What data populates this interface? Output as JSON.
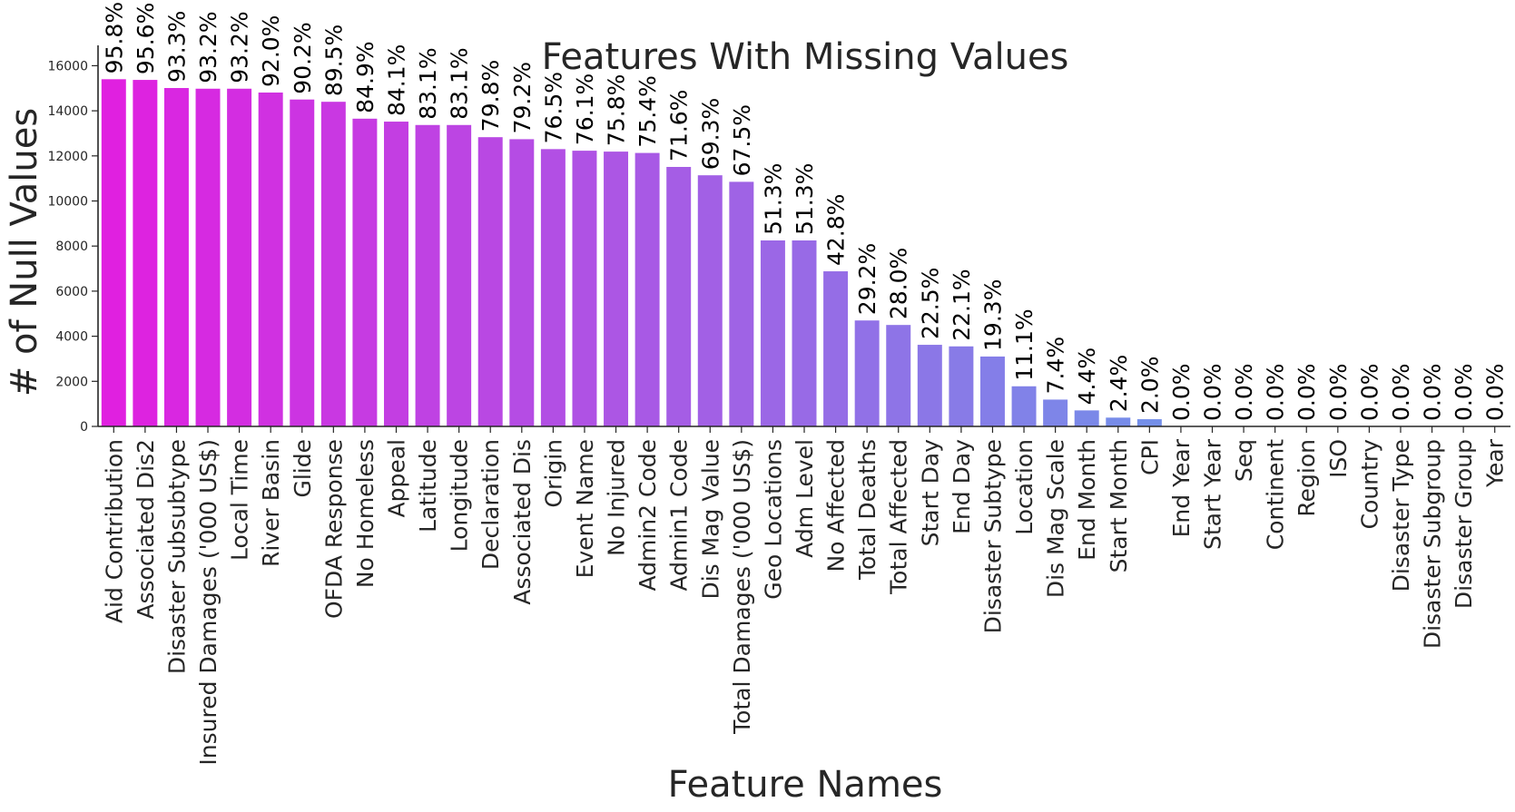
{
  "chart_data": {
    "type": "bar",
    "title": "Features With Missing Values",
    "xlabel": "Feature Names",
    "ylabel": "# of Null Values",
    "ylim": [
      0,
      16500
    ],
    "yticks": [
      0,
      2000,
      4000,
      6000,
      8000,
      10000,
      12000,
      14000,
      16000
    ],
    "grid": false,
    "legend": "none",
    "color_start": "#e020e0",
    "color_end": "#50b4ec",
    "categories": [
      "Aid Contribution",
      "Associated Dis2",
      "Disaster Subsubtype",
      "Insured Damages ('000 US$)",
      "Local Time",
      "River Basin",
      "Glide",
      "OFDA Response",
      "No Homeless",
      "Appeal",
      "Latitude",
      "Longitude",
      "Declaration",
      "Associated Dis",
      "Origin",
      "Event Name",
      "No Injured",
      "Admin2 Code",
      "Admin1 Code",
      "Dis Mag Value",
      "Total Damages ('000 US$)",
      "Geo Locations",
      "Adm Level",
      "No Affected",
      "Total Deaths",
      "Total Affected",
      "Start Day",
      "End Day",
      "Disaster Subtype",
      "Location",
      "Dis Mag Scale",
      "End Month",
      "Start Month",
      "CPI",
      "End Year",
      "Start Year",
      "Seq",
      "Continent",
      "Region",
      "ISO",
      "Country",
      "Disaster Type",
      "Disaster Subgroup",
      "Disaster Group",
      "Year"
    ],
    "values": [
      15400,
      15370,
      15010,
      14980,
      14980,
      14810,
      14500,
      14400,
      13650,
      13520,
      13370,
      13370,
      12830,
      12740,
      12300,
      12230,
      12190,
      12130,
      11510,
      11140,
      10850,
      8250,
      8250,
      6880,
      4700,
      4500,
      3620,
      3550,
      3100,
      1780,
      1190,
      710,
      390,
      320,
      0,
      0,
      0,
      0,
      0,
      0,
      0,
      0,
      0,
      0,
      0
    ],
    "data_labels": [
      "95.8%",
      "95.6%",
      "93.3%",
      "93.2%",
      "93.2%",
      "92.0%",
      "90.2%",
      "89.5%",
      "84.9%",
      "84.1%",
      "83.1%",
      "83.1%",
      "79.8%",
      "79.2%",
      "76.5%",
      "76.1%",
      "75.8%",
      "75.4%",
      "71.6%",
      "69.3%",
      "67.5%",
      "51.3%",
      "51.3%",
      "42.8%",
      "29.2%",
      "28.0%",
      "22.5%",
      "22.1%",
      "19.3%",
      "11.1%",
      "7.4%",
      "4.4%",
      "2.4%",
      "2.0%",
      "0.0%",
      "0.0%",
      "0.0%",
      "0.0%",
      "0.0%",
      "0.0%",
      "0.0%",
      "0.0%",
      "0.0%",
      "0.0%",
      "0.0%"
    ]
  }
}
